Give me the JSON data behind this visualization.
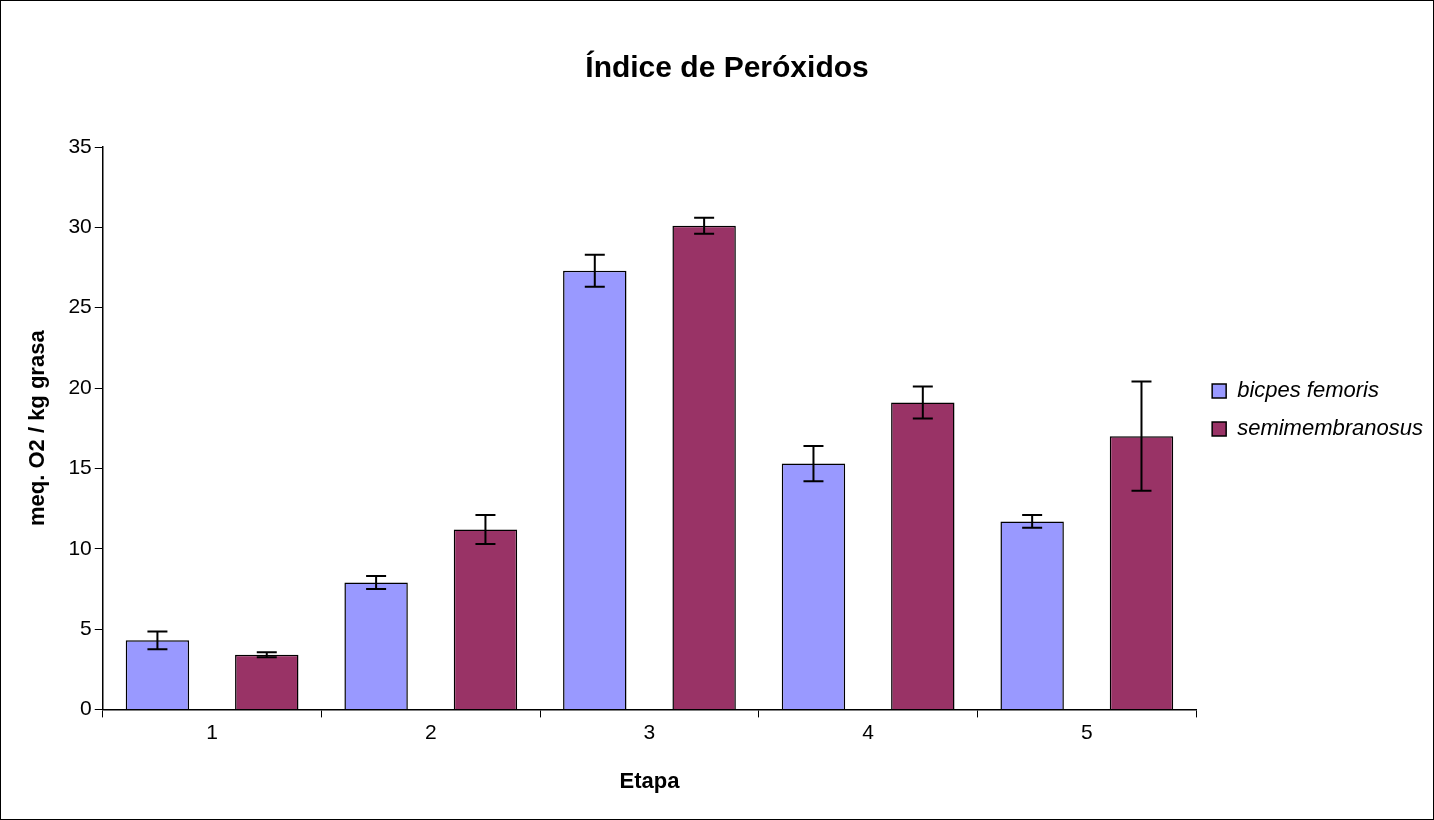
{
  "chart_data": {
    "type": "bar",
    "title": "Índice de Peróxidos",
    "xlabel": "Etapa",
    "ylabel": "meq. O2 / kg grasa",
    "categories": [
      "1",
      "2",
      "3",
      "4",
      "5"
    ],
    "series": [
      {
        "name": "bicpes femoris",
        "color": "#9999ff",
        "values": [
          4.3,
          7.9,
          27.3,
          15.3,
          11.7
        ],
        "errors": [
          0.55,
          0.4,
          1.0,
          1.1,
          0.4
        ]
      },
      {
        "name": "semimembranosus",
        "color": "#993366",
        "values": [
          3.4,
          11.2,
          30.1,
          19.1,
          17.0
        ],
        "errors": [
          0.15,
          0.9,
          0.5,
          1.0,
          3.4
        ]
      }
    ],
    "ylim": [
      0,
      35
    ],
    "yticks": [
      0,
      5,
      10,
      15,
      20,
      25,
      30,
      35
    ],
    "legend": "right"
  }
}
